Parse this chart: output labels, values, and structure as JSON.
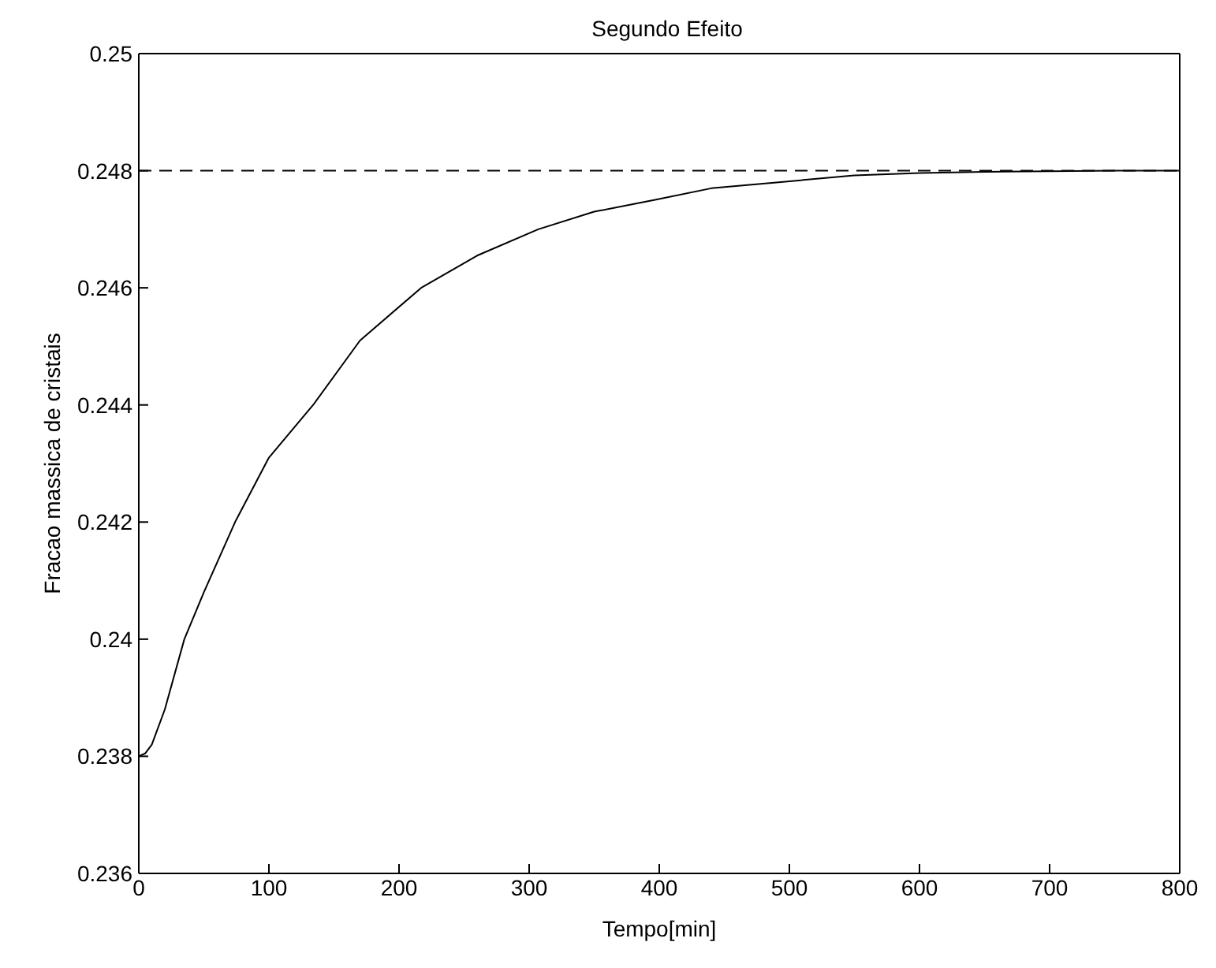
{
  "chart_data": {
    "type": "line",
    "title": "Segundo Efeito",
    "xlabel": "Tempo[min]",
    "ylabel": "Fracao massica de cristais",
    "x": [
      0,
      5,
      10,
      20,
      35,
      50,
      74,
      100,
      134,
      170,
      217,
      260,
      307,
      350,
      396,
      440,
      490,
      550,
      600,
      650,
      700,
      750,
      800
    ],
    "series": [
      {
        "color": "#000000",
        "values": [
          0.238,
          0.23805,
          0.2382,
          0.2388,
          0.24,
          0.2408,
          0.242,
          0.2431,
          0.244,
          0.2451,
          0.246,
          0.24655,
          0.247,
          0.2473,
          0.2475,
          0.2477,
          0.2478,
          0.24792,
          0.24796,
          0.24798,
          0.24799,
          0.248,
          0.248
        ]
      }
    ],
    "xlim": [
      0,
      800
    ],
    "xticks": [
      0,
      100,
      200,
      300,
      400,
      500,
      600,
      700,
      800
    ],
    "ylim": [
      0.236,
      0.25
    ],
    "yticks": [
      0.236,
      0.238,
      0.24,
      0.242,
      0.244,
      0.246,
      0.248,
      0.25
    ],
    "ref_lines": [
      {
        "axis": "y",
        "value": 0.248,
        "line_style": "dashed",
        "color": "#000000"
      }
    ],
    "grid": false,
    "legend": false,
    "marker": "none",
    "line_style": "solid"
  }
}
